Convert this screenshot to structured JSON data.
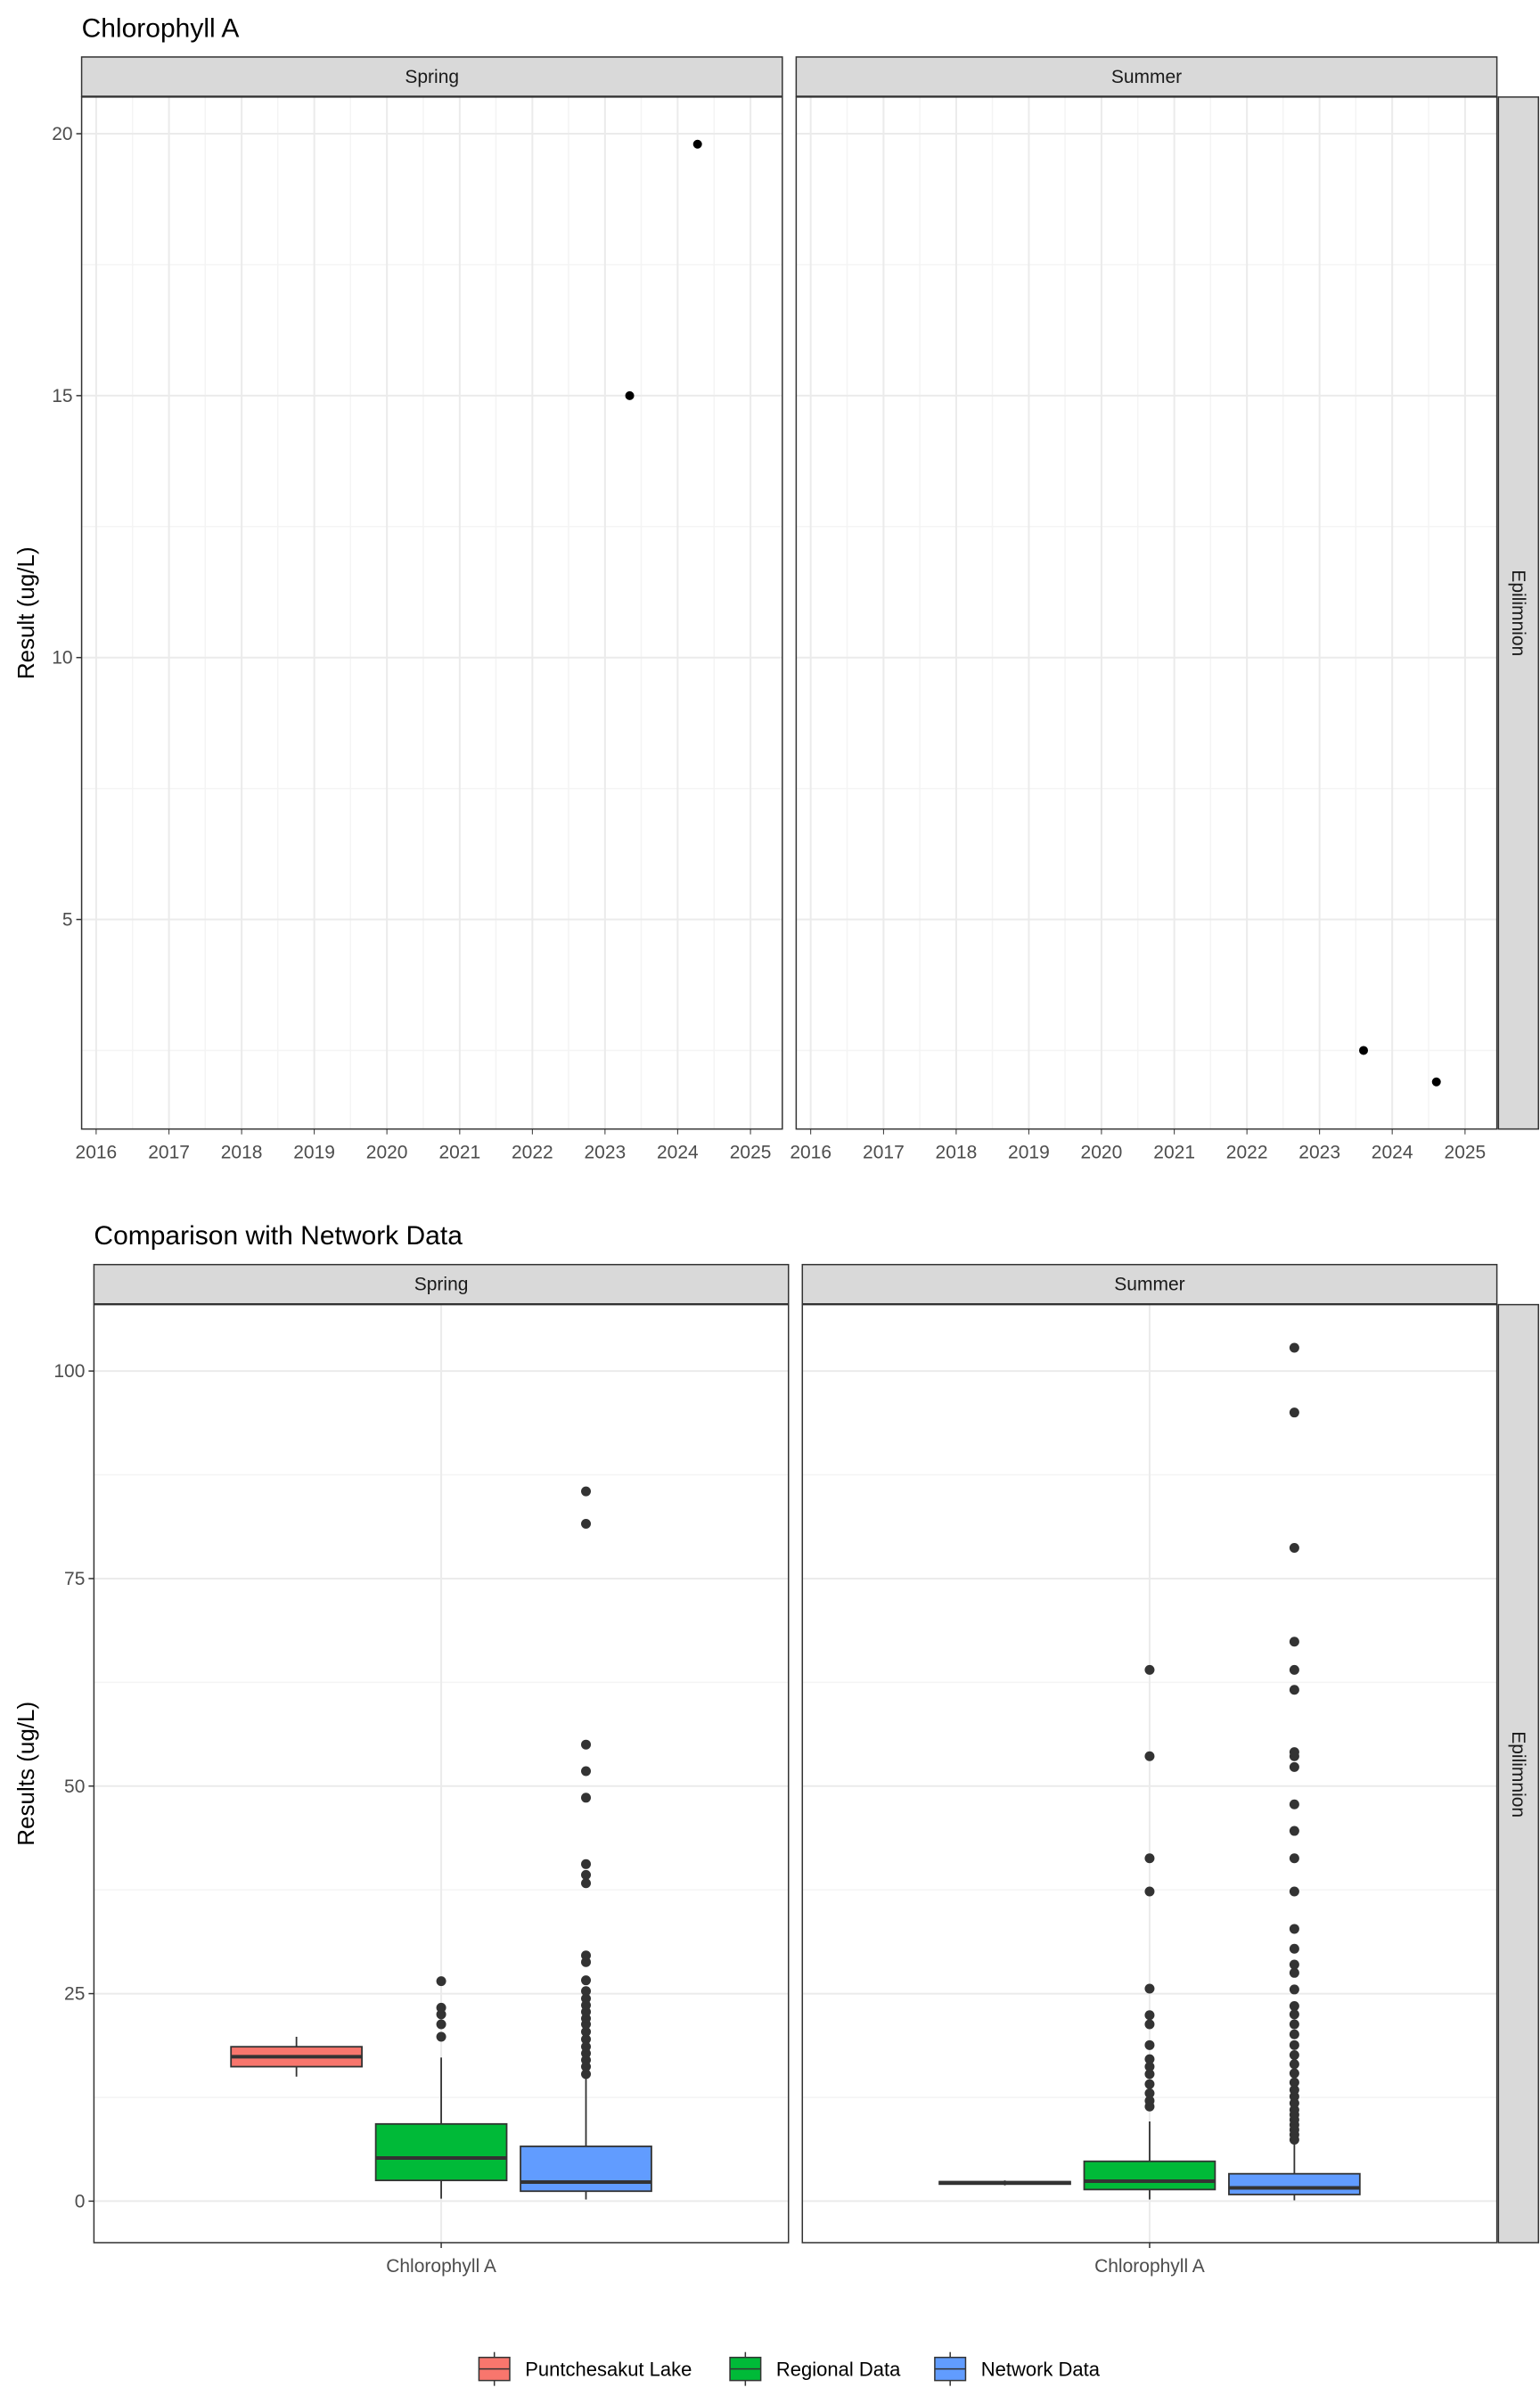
{
  "chart_data": [
    {
      "type": "scatter",
      "title": "Chlorophyll A",
      "ylabel": "Result (ug/L)",
      "xlabel": "",
      "ylim": [
        1,
        20.7
      ],
      "xlim": [
        "2015-10-20",
        "2025-06-10"
      ],
      "x_ticks": [
        "2016",
        "2017",
        "2018",
        "2019",
        "2020",
        "2021",
        "2022",
        "2023",
        "2024",
        "2025"
      ],
      "y_ticks": [
        5,
        10,
        15,
        20
      ],
      "grid": true,
      "row_strip": "Epilimnion",
      "panels": [
        {
          "strip": "Spring",
          "points": [
            {
              "x": "2023-05-05",
              "y": 15.0
            },
            {
              "x": "2024-04-10",
              "y": 19.8
            }
          ]
        },
        {
          "strip": "Summer",
          "points": [
            {
              "x": "2023-08-10",
              "y": 2.5
            },
            {
              "x": "2024-08-10",
              "y": 1.9
            }
          ]
        }
      ]
    },
    {
      "type": "box",
      "title": "Comparison with Network Data",
      "ylabel": "Results (ug/L)",
      "xlabel": "",
      "ylim": [
        -5,
        108
      ],
      "y_ticks": [
        0,
        25,
        50,
        75,
        100
      ],
      "category": "Chlorophyll A",
      "grid": true,
      "row_strip": "Epilimnion",
      "legend": {
        "position": "bottom",
        "entries": [
          {
            "name": "Puntchesakut Lake",
            "color": "#F8766D"
          },
          {
            "name": "Regional Data",
            "color": "#00BA38"
          },
          {
            "name": "Network Data",
            "color": "#619CFF"
          }
        ]
      },
      "panels": [
        {
          "strip": "Spring",
          "boxes": [
            {
              "group": "Puntchesakut Lake",
              "min": 15.0,
              "q1": 16.2,
              "median": 17.4,
              "q3": 18.6,
              "max": 19.8,
              "outliers": []
            },
            {
              "group": "Regional Data",
              "min": 0.3,
              "q1": 2.5,
              "median": 5.2,
              "q3": 9.3,
              "max": 17.3,
              "outliers": [
                19.8,
                21.3,
                22.5,
                23.3,
                26.5
              ]
            },
            {
              "group": "Network Data",
              "min": 0.2,
              "q1": 1.2,
              "median": 2.3,
              "q3": 6.6,
              "max": 14.8,
              "outliers": [
                15.3,
                16.2,
                17.0,
                17.8,
                18.6,
                19.5,
                20.4,
                21.3,
                22.0,
                22.8,
                23.6,
                24.4,
                25.3,
                26.6,
                28.8,
                29.6,
                38.3,
                39.3,
                40.6,
                48.6,
                51.8,
                55.0,
                81.6,
                85.5
              ]
            }
          ]
        },
        {
          "strip": "Summer",
          "boxes": [
            {
              "group": "Puntchesakut Lake",
              "min": 1.9,
              "q1": 2.05,
              "median": 2.2,
              "q3": 2.35,
              "max": 2.5,
              "outliers": []
            },
            {
              "group": "Regional Data",
              "min": 0.2,
              "q1": 1.4,
              "median": 2.4,
              "q3": 4.8,
              "max": 9.6,
              "outliers": [
                11.4,
                12.1,
                13.0,
                14.1,
                15.3,
                16.2,
                17.1,
                18.8,
                21.3,
                22.4,
                25.6,
                37.3,
                41.3,
                53.6,
                64.0
              ]
            },
            {
              "group": "Network Data",
              "min": 0.1,
              "q1": 0.8,
              "median": 1.6,
              "q3": 3.3,
              "max": 7.0,
              "outliers": [
                7.4,
                8.0,
                8.6,
                9.2,
                9.8,
                10.4,
                11.0,
                11.8,
                12.6,
                13.4,
                14.3,
                15.4,
                16.5,
                17.6,
                18.8,
                20.1,
                21.3,
                22.5,
                23.5,
                25.5,
                27.5,
                28.5,
                30.4,
                32.8,
                37.3,
                41.3,
                44.6,
                47.8,
                52.3,
                53.6,
                54.1,
                61.6,
                64.0,
                67.4,
                78.7,
                95.0,
                102.8
              ]
            }
          ]
        }
      ]
    }
  ]
}
